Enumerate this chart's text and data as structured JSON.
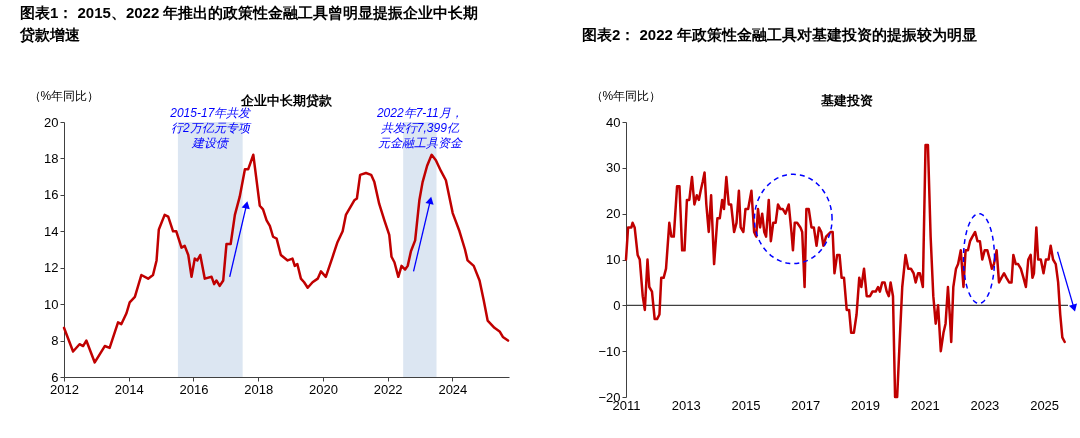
{
  "chart_data": [
    {
      "type": "line",
      "title": "图表1：  2015、2022 年推出的政策性金融工具曾明显提振企业中长期贷款增速",
      "subtitle": "企业中长期贷款",
      "ylabel": "（%年同比）",
      "color": "#c00000",
      "x": [
        2012.0,
        2012.28,
        2012.48,
        2012.59,
        2012.69,
        2012.95,
        2013.26,
        2013.41,
        2013.67,
        2013.77,
        2013.93,
        2014.03,
        2014.19,
        2014.39,
        2014.6,
        2014.75,
        2014.86,
        2014.93,
        2015.11,
        2015.22,
        2015.37,
        2015.47,
        2015.63,
        2015.73,
        2015.84,
        2015.94,
        2016.04,
        2016.12,
        2016.21,
        2016.35,
        2016.56,
        2016.64,
        2016.71,
        2016.81,
        2016.92,
        2017.02,
        2017.15,
        2017.28,
        2017.43,
        2017.59,
        2017.69,
        2017.85,
        2018.05,
        2018.15,
        2018.26,
        2018.36,
        2018.46,
        2018.57,
        2018.7,
        2018.91,
        2019.06,
        2019.13,
        2019.21,
        2019.32,
        2019.42,
        2019.53,
        2019.68,
        2019.84,
        2019.94,
        2020.09,
        2020.3,
        2020.45,
        2020.61,
        2020.71,
        2020.97,
        2021.05,
        2021.15,
        2021.33,
        2021.49,
        2021.59,
        2021.74,
        2021.9,
        2022.05,
        2022.12,
        2022.21,
        2022.33,
        2022.43,
        2022.54,
        2022.62,
        2022.72,
        2022.85,
        2022.98,
        2023.08,
        2023.22,
        2023.36,
        2023.49,
        2023.65,
        2023.8,
        2024.01,
        2024.22,
        2024.39,
        2024.47,
        2024.66,
        2024.84,
        2024.97,
        2025.09,
        2025.3,
        2025.46,
        2025.56,
        2025.72
      ],
      "values": [
        8.7,
        7.4,
        7.8,
        7.7,
        8.0,
        6.8,
        7.7,
        7.6,
        9.0,
        8.9,
        9.5,
        10.1,
        10.4,
        11.6,
        11.4,
        11.6,
        12.4,
        14.1,
        14.9,
        14.8,
        14.0,
        14.0,
        13.1,
        13.2,
        12.7,
        11.5,
        12.5,
        12.4,
        12.7,
        11.4,
        11.5,
        11.1,
        11.3,
        11.0,
        11.3,
        13.3,
        13.3,
        14.9,
        15.9,
        17.4,
        17.4,
        18.2,
        15.4,
        15.2,
        14.6,
        14.3,
        13.7,
        13.6,
        12.7,
        12.4,
        12.5,
        12.1,
        12.2,
        11.4,
        11.2,
        10.9,
        11.2,
        11.4,
        11.8,
        11.5,
        12.6,
        13.4,
        14.0,
        14.9,
        15.7,
        15.8,
        17.1,
        17.2,
        17.1,
        16.7,
        15.5,
        14.6,
        13.8,
        12.6,
        12.3,
        11.5,
        12.1,
        11.9,
        12.1,
        12.9,
        13.5,
        15.7,
        16.7,
        17.6,
        18.2,
        17.9,
        17.3,
        16.8,
        15.0,
        14.0,
        13.0,
        12.4,
        12.1,
        11.3,
        10.2,
        9.1,
        8.7,
        8.5,
        8.2,
        8.0
      ],
      "xlim": [
        2012,
        2025.75
      ],
      "xticks": [
        2012,
        2014,
        2016,
        2018,
        2020,
        2022,
        2024
      ],
      "ylim": [
        6,
        20
      ],
      "yticks": [
        6,
        8,
        10,
        12,
        14,
        16,
        18,
        20
      ],
      "bands": [
        {
          "axis": "x",
          "from": 2015.52,
          "to": 2017.52,
          "label": "2015-17年共发行2万亿元专项建设债",
          "color": "#dce6f2"
        },
        {
          "axis": "x",
          "from": 2022.48,
          "to": 2023.51,
          "label": "2022年7-11月，共发行7,399亿元金融工具资金",
          "color": "#dce6f2"
        }
      ]
    },
    {
      "type": "line",
      "title": "图表2：  2022 年政策性金融工具对基建投资的提振较为明显",
      "subtitle": "基建投资",
      "ylabel": "（%年同比）",
      "color": "#c00000",
      "x": [
        2011.0,
        2011.07,
        2011.18,
        2011.22,
        2011.29,
        2011.39,
        2011.46,
        2011.56,
        2011.63,
        2011.72,
        2011.78,
        2011.87,
        2011.96,
        2012.04,
        2012.12,
        2012.18,
        2012.26,
        2012.34,
        2012.45,
        2012.52,
        2012.6,
        2012.71,
        2012.79,
        2012.88,
        2012.96,
        2013.04,
        2013.12,
        2013.21,
        2013.29,
        2013.37,
        2013.44,
        2013.5,
        2013.57,
        2013.63,
        2013.69,
        2013.77,
        2013.85,
        2013.95,
        2014.06,
        2014.14,
        2014.22,
        2014.28,
        2014.36,
        2014.44,
        2014.52,
        2014.62,
        2014.7,
        2014.78,
        2014.84,
        2014.93,
        2015.0,
        2015.09,
        2015.2,
        2015.29,
        2015.36,
        2015.42,
        2015.49,
        2015.56,
        2015.63,
        2015.69,
        2015.78,
        2015.85,
        2015.93,
        2016.01,
        2016.09,
        2016.17,
        2016.25,
        2016.34,
        2016.45,
        2016.54,
        2016.59,
        2016.65,
        2016.73,
        2016.84,
        2016.9,
        2016.98,
        2017.04,
        2017.12,
        2017.21,
        2017.29,
        2017.38,
        2017.46,
        2017.54,
        2017.61,
        2017.7,
        2017.85,
        2017.92,
        2017.98,
        2018.07,
        2018.15,
        2018.22,
        2018.3,
        2018.39,
        2018.47,
        2018.54,
        2018.63,
        2018.72,
        2018.81,
        2018.88,
        2018.97,
        2019.06,
        2019.17,
        2019.25,
        2019.36,
        2019.44,
        2019.5,
        2019.58,
        2019.66,
        2019.73,
        2019.8,
        2019.86,
        2019.94,
        2020.01,
        2020.08,
        2020.17,
        2020.25,
        2020.36,
        2020.45,
        2020.54,
        2020.63,
        2020.7,
        2020.78,
        2020.84,
        2020.94,
        2021.03,
        2021.11,
        2021.2,
        2021.29,
        2021.37,
        2021.45,
        2021.54,
        2021.63,
        2021.7,
        2021.78,
        2021.85,
        2021.89,
        2021.96,
        2022.05,
        2022.12,
        2022.21,
        2022.3,
        2022.37,
        2022.45,
        2022.52,
        2022.6,
        2022.69,
        2022.77,
        2022.85,
        2022.93,
        2023.01,
        2023.1,
        2023.18,
        2023.25,
        2023.32,
        2023.41,
        2023.49,
        2023.57,
        2023.66,
        2023.74,
        2023.83,
        2023.91,
        2023.97,
        2024.05,
        2024.13,
        2024.22,
        2024.31,
        2024.39,
        2024.47,
        2024.55,
        2024.61,
        2024.66,
        2024.74,
        2024.8,
        2024.89,
        2024.98,
        2025.06,
        2025.15,
        2025.22,
        2025.3,
        2025.39,
        2025.47,
        2025.54,
        2025.61,
        2025.69
      ],
      "values": [
        10,
        17,
        17,
        18,
        17,
        11,
        10,
        2,
        -1,
        10,
        4,
        3,
        -3,
        -3,
        -2,
        6,
        6,
        8,
        18,
        15,
        15,
        26,
        26,
        12,
        12,
        23,
        23,
        28,
        22,
        24,
        23,
        25,
        27,
        29,
        22,
        16,
        24,
        9,
        19,
        19,
        23,
        21,
        28,
        22,
        22,
        16,
        18,
        25,
        17,
        16,
        21,
        21,
        25,
        16,
        15,
        21,
        17,
        20,
        16,
        15,
        23,
        14,
        18,
        18,
        22,
        21,
        21,
        20,
        22,
        16,
        12,
        18,
        18,
        17,
        16,
        4,
        21,
        21,
        17,
        17,
        13,
        17,
        16,
        13,
        15,
        16,
        16,
        7,
        11,
        11,
        6,
        6,
        -1,
        -1,
        -6,
        -6,
        -2,
        6,
        4,
        8,
        2,
        2,
        3,
        3,
        4,
        3,
        5,
        5,
        3,
        2,
        5,
        2,
        -20,
        -20,
        -7,
        4,
        11,
        8,
        8,
        7,
        5,
        7,
        7,
        4,
        35,
        35,
        15,
        2,
        -4,
        0,
        -10,
        -6,
        -4,
        4,
        -3,
        -8,
        4,
        8,
        9,
        12,
        4,
        12,
        12,
        14,
        15,
        16,
        14,
        14,
        10,
        12,
        12,
        10,
        8,
        9,
        12,
        5,
        6,
        7,
        6,
        5,
        5,
        11,
        9,
        9,
        8,
        6,
        4,
        10,
        11,
        6,
        7,
        17,
        10,
        10,
        7,
        10,
        10,
        13,
        10,
        9,
        5,
        -2,
        -7,
        -8
      ],
      "xlim": [
        2011,
        2025.8
      ],
      "xticks": [
        2011,
        2013,
        2015,
        2017,
        2019,
        2021,
        2023,
        2025
      ],
      "ylim": [
        -20,
        40
      ],
      "yticks": [
        -20,
        -10,
        0,
        10,
        20,
        30,
        40
      ],
      "ref_lines": [
        {
          "axis": "y",
          "value": 0,
          "color": "#404040"
        }
      ]
    }
  ]
}
